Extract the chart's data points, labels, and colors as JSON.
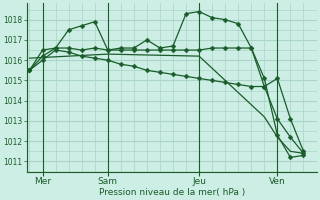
{
  "background_color": "#cceee4",
  "grid_color": "#aad4c8",
  "line_color": "#1a5c2a",
  "marker_color": "#1a5c2a",
  "xlabel": "Pression niveau de la mer( hPa )",
  "ylim": [
    1010.5,
    1018.8
  ],
  "yticks": [
    1011,
    1012,
    1013,
    1014,
    1015,
    1016,
    1017,
    1018
  ],
  "xlim": [
    -0.1,
    11.0
  ],
  "day_labels": [
    "Mer",
    "Sam",
    "Jeu",
    "Ven"
  ],
  "day_positions": [
    0.5,
    3.0,
    6.5,
    9.5
  ],
  "day_vlines": [
    0.5,
    3.0,
    6.5,
    9.5
  ],
  "lines": [
    {
      "x": [
        0.0,
        0.5,
        1.0,
        1.5,
        2.0,
        2.5,
        3.0,
        3.5,
        4.0,
        4.5,
        5.0,
        5.5,
        6.0,
        6.5,
        7.0,
        7.5,
        8.0,
        8.5,
        9.0,
        9.5,
        10.0,
        10.5
      ],
      "y": [
        1015.5,
        1016.2,
        1016.6,
        1017.5,
        1017.7,
        1017.9,
        1016.5,
        1016.6,
        1016.6,
        1017.0,
        1016.6,
        1016.7,
        1018.3,
        1018.4,
        1018.1,
        1018.0,
        1017.8,
        1016.6,
        1014.7,
        1015.1,
        1013.1,
        1011.5
      ],
      "marker": "D",
      "markersize": 2.5,
      "linewidth": 0.9
    },
    {
      "x": [
        0.0,
        0.5,
        1.0,
        1.5,
        2.0,
        2.5,
        3.0,
        3.5,
        4.0,
        4.5,
        5.0,
        5.5,
        6.0,
        6.5,
        7.0,
        7.5,
        8.0,
        8.5,
        9.0,
        9.5,
        10.0,
        10.5
      ],
      "y": [
        1015.5,
        1016.5,
        1016.6,
        1016.6,
        1016.5,
        1016.6,
        1016.5,
        1016.5,
        1016.5,
        1016.5,
        1016.5,
        1016.5,
        1016.5,
        1016.5,
        1016.6,
        1016.6,
        1016.6,
        1016.6,
        1015.1,
        1012.3,
        1011.2,
        1011.3
      ],
      "marker": "D",
      "markersize": 2.5,
      "linewidth": 0.9
    },
    {
      "x": [
        0.0,
        0.5,
        1.0,
        1.5,
        2.0,
        2.5,
        3.0,
        3.5,
        4.0,
        4.5,
        5.0,
        5.5,
        6.0,
        6.5,
        7.0,
        7.5,
        8.0,
        8.5,
        9.0,
        9.5,
        10.0,
        10.5
      ],
      "y": [
        1015.5,
        1016.0,
        1016.5,
        1016.4,
        1016.2,
        1016.1,
        1016.0,
        1015.8,
        1015.7,
        1015.5,
        1015.4,
        1015.3,
        1015.2,
        1015.1,
        1015.0,
        1014.9,
        1014.8,
        1014.7,
        1014.7,
        1013.1,
        1012.2,
        1011.4
      ],
      "marker": "D",
      "markersize": 2.5,
      "linewidth": 0.9
    },
    {
      "x": [
        0.0,
        3.0,
        6.5,
        9.0,
        9.5,
        10.0,
        10.5
      ],
      "y": [
        1016.1,
        1016.3,
        1016.2,
        1013.2,
        1012.2,
        1011.5,
        1011.4
      ],
      "marker": null,
      "markersize": 0,
      "linewidth": 0.9
    }
  ]
}
